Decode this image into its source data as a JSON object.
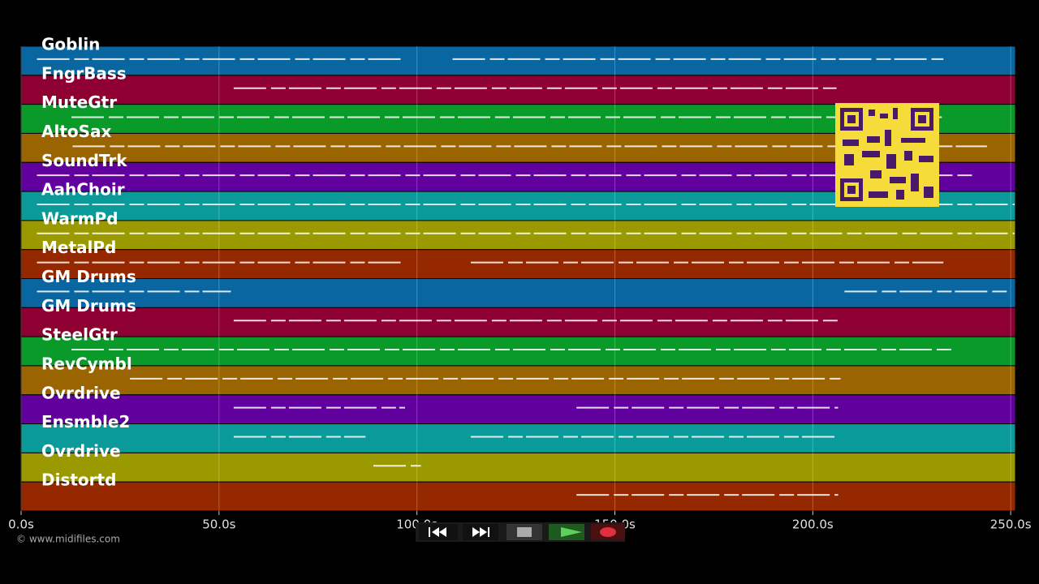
{
  "tracks": [
    {
      "name": "Goblin",
      "color": "#0a66a0",
      "notes": [
        [
          4,
          97
        ],
        [
          109,
          233
        ]
      ]
    },
    {
      "name": "FngrBass",
      "color": "#8e0032",
      "notes": [
        [
          53.7,
          206
        ]
      ]
    },
    {
      "name": "MuteGtr",
      "color": "#0a9a2a",
      "notes": [
        [
          12.7,
          232.6
        ]
      ]
    },
    {
      "name": "AltoSax",
      "color": "#9a6400",
      "notes": [
        [
          13,
          244
        ]
      ]
    },
    {
      "name": "SoundTrk",
      "color": "#62009e",
      "notes": [
        [
          4,
          241
        ]
      ]
    },
    {
      "name": "AahChoir",
      "color": "#0a9a9a",
      "notes": [
        [
          4,
          251
        ]
      ]
    },
    {
      "name": "WarmPd",
      "color": "#9a9a00",
      "notes": [
        [
          4,
          251
        ]
      ]
    },
    {
      "name": "MetalPd",
      "color": "#962800",
      "notes": [
        [
          4,
          97
        ],
        [
          113.6,
          233
        ]
      ]
    },
    {
      "name": "GM Drums",
      "color": "#0a66a0",
      "notes": [
        [
          4,
          53
        ],
        [
          208,
          249
        ]
      ]
    },
    {
      "name": "GM Drums",
      "color": "#8e0032",
      "notes": [
        [
          53.7,
          207
        ]
      ]
    },
    {
      "name": "SteelGtr",
      "color": "#0a9a2a",
      "notes": [
        [
          12.7,
          235.7
        ]
      ]
    },
    {
      "name": "RevCymbl",
      "color": "#9a6400",
      "notes": [
        [
          27.5,
          207
        ]
      ]
    },
    {
      "name": "Ovrdrive",
      "color": "#62009e",
      "notes": [
        [
          53.7,
          97
        ],
        [
          140.3,
          206.4
        ]
      ]
    },
    {
      "name": "Ensmble2",
      "color": "#0a9a9a",
      "notes": [
        [
          53.7,
          87
        ],
        [
          113.6,
          206
        ]
      ]
    },
    {
      "name": "Ovrdrive",
      "color": "#9a9a00",
      "notes": [
        [
          89,
          101
        ]
      ]
    },
    {
      "name": "Distortd",
      "color": "#962800",
      "notes": [
        [
          140.3,
          206.4
        ]
      ]
    }
  ],
  "time_axis": {
    "xlim": [
      0,
      251.2
    ],
    "ticks": [
      {
        "value": 0,
        "label": "0.0s"
      },
      {
        "value": 50,
        "label": "50.0s"
      },
      {
        "value": 100,
        "label": "100.0s"
      },
      {
        "value": 150,
        "label": "150.0s"
      },
      {
        "value": 200,
        "label": "200.0s"
      },
      {
        "value": 250,
        "label": "250.0s"
      }
    ]
  },
  "footer": {
    "credit": "© www.midifiles.com"
  }
}
